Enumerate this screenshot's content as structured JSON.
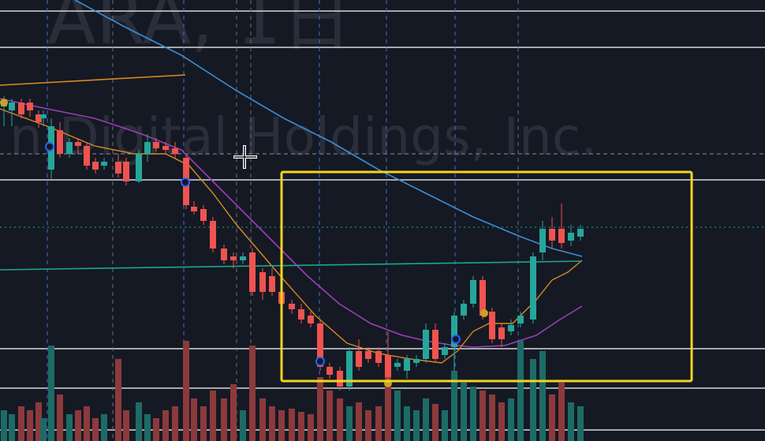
{
  "watermark": {
    "symbol": "ARA, 1日",
    "company": "n Digital Holdings, Inc."
  }
}
